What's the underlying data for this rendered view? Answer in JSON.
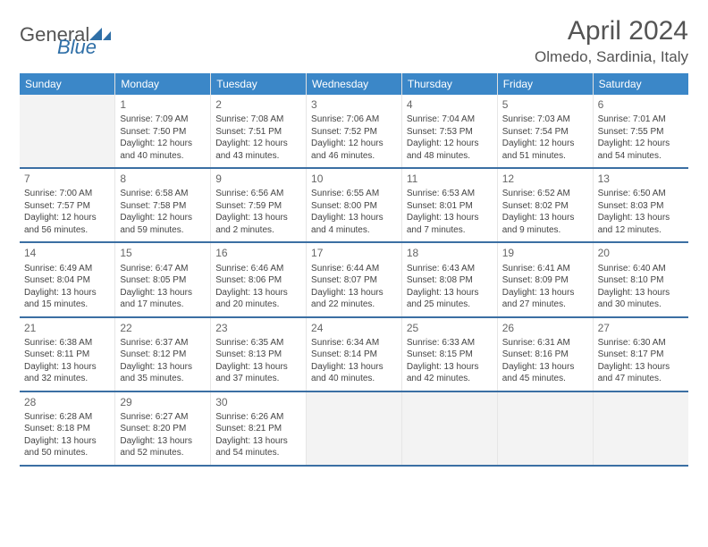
{
  "logo": {
    "textA": "General",
    "textB": "Blue"
  },
  "title": "April 2024",
  "location": "Olmedo, Sardinia, Italy",
  "colors": {
    "header_bg": "#3b87c8",
    "header_text": "#ffffff",
    "row_border": "#3b6fa3",
    "cell_border": "#e6e6e6",
    "empty_bg": "#f3f3f3",
    "text": "#444444",
    "logo_gray": "#545454",
    "logo_blue": "#2f6fa7"
  },
  "day_names": [
    "Sunday",
    "Monday",
    "Tuesday",
    "Wednesday",
    "Thursday",
    "Friday",
    "Saturday"
  ],
  "weeks": [
    [
      null,
      {
        "n": "1",
        "sr": "7:09 AM",
        "ss": "7:50 PM",
        "dl": "12 hours and 40 minutes."
      },
      {
        "n": "2",
        "sr": "7:08 AM",
        "ss": "7:51 PM",
        "dl": "12 hours and 43 minutes."
      },
      {
        "n": "3",
        "sr": "7:06 AM",
        "ss": "7:52 PM",
        "dl": "12 hours and 46 minutes."
      },
      {
        "n": "4",
        "sr": "7:04 AM",
        "ss": "7:53 PM",
        "dl": "12 hours and 48 minutes."
      },
      {
        "n": "5",
        "sr": "7:03 AM",
        "ss": "7:54 PM",
        "dl": "12 hours and 51 minutes."
      },
      {
        "n": "6",
        "sr": "7:01 AM",
        "ss": "7:55 PM",
        "dl": "12 hours and 54 minutes."
      }
    ],
    [
      {
        "n": "7",
        "sr": "7:00 AM",
        "ss": "7:57 PM",
        "dl": "12 hours and 56 minutes."
      },
      {
        "n": "8",
        "sr": "6:58 AM",
        "ss": "7:58 PM",
        "dl": "12 hours and 59 minutes."
      },
      {
        "n": "9",
        "sr": "6:56 AM",
        "ss": "7:59 PM",
        "dl": "13 hours and 2 minutes."
      },
      {
        "n": "10",
        "sr": "6:55 AM",
        "ss": "8:00 PM",
        "dl": "13 hours and 4 minutes."
      },
      {
        "n": "11",
        "sr": "6:53 AM",
        "ss": "8:01 PM",
        "dl": "13 hours and 7 minutes."
      },
      {
        "n": "12",
        "sr": "6:52 AM",
        "ss": "8:02 PM",
        "dl": "13 hours and 9 minutes."
      },
      {
        "n": "13",
        "sr": "6:50 AM",
        "ss": "8:03 PM",
        "dl": "13 hours and 12 minutes."
      }
    ],
    [
      {
        "n": "14",
        "sr": "6:49 AM",
        "ss": "8:04 PM",
        "dl": "13 hours and 15 minutes."
      },
      {
        "n": "15",
        "sr": "6:47 AM",
        "ss": "8:05 PM",
        "dl": "13 hours and 17 minutes."
      },
      {
        "n": "16",
        "sr": "6:46 AM",
        "ss": "8:06 PM",
        "dl": "13 hours and 20 minutes."
      },
      {
        "n": "17",
        "sr": "6:44 AM",
        "ss": "8:07 PM",
        "dl": "13 hours and 22 minutes."
      },
      {
        "n": "18",
        "sr": "6:43 AM",
        "ss": "8:08 PM",
        "dl": "13 hours and 25 minutes."
      },
      {
        "n": "19",
        "sr": "6:41 AM",
        "ss": "8:09 PM",
        "dl": "13 hours and 27 minutes."
      },
      {
        "n": "20",
        "sr": "6:40 AM",
        "ss": "8:10 PM",
        "dl": "13 hours and 30 minutes."
      }
    ],
    [
      {
        "n": "21",
        "sr": "6:38 AM",
        "ss": "8:11 PM",
        "dl": "13 hours and 32 minutes."
      },
      {
        "n": "22",
        "sr": "6:37 AM",
        "ss": "8:12 PM",
        "dl": "13 hours and 35 minutes."
      },
      {
        "n": "23",
        "sr": "6:35 AM",
        "ss": "8:13 PM",
        "dl": "13 hours and 37 minutes."
      },
      {
        "n": "24",
        "sr": "6:34 AM",
        "ss": "8:14 PM",
        "dl": "13 hours and 40 minutes."
      },
      {
        "n": "25",
        "sr": "6:33 AM",
        "ss": "8:15 PM",
        "dl": "13 hours and 42 minutes."
      },
      {
        "n": "26",
        "sr": "6:31 AM",
        "ss": "8:16 PM",
        "dl": "13 hours and 45 minutes."
      },
      {
        "n": "27",
        "sr": "6:30 AM",
        "ss": "8:17 PM",
        "dl": "13 hours and 47 minutes."
      }
    ],
    [
      {
        "n": "28",
        "sr": "6:28 AM",
        "ss": "8:18 PM",
        "dl": "13 hours and 50 minutes."
      },
      {
        "n": "29",
        "sr": "6:27 AM",
        "ss": "8:20 PM",
        "dl": "13 hours and 52 minutes."
      },
      {
        "n": "30",
        "sr": "6:26 AM",
        "ss": "8:21 PM",
        "dl": "13 hours and 54 minutes."
      },
      null,
      null,
      null,
      null
    ]
  ],
  "labels": {
    "sunrise": "Sunrise:",
    "sunset": "Sunset:",
    "daylight": "Daylight:"
  }
}
